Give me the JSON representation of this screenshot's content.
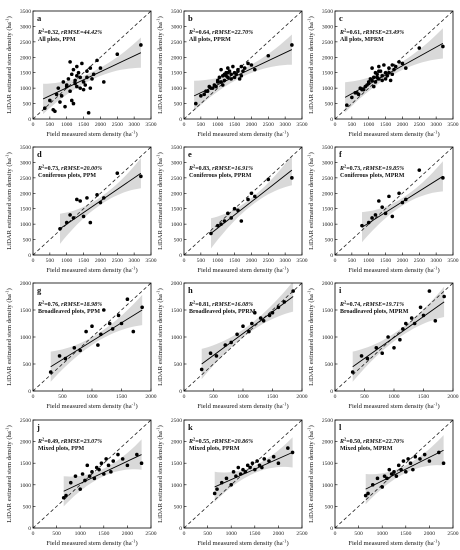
{
  "figure": {
    "xlabel_main": "Field measured stem density",
    "ylabel_main": "LiDAR estimated stem density",
    "unit": "(ha",
    "unit_sup": "-1",
    "unit_close": ")"
  },
  "chart_data": [
    {
      "type": "scatter",
      "label": "a",
      "stat_r2": "=0.32, ",
      "stat_rmse": "rRMSE=44.42%",
      "stat_line2": "All plots, PPM",
      "xlim": [
        0,
        3500
      ],
      "ylim": [
        0,
        3500
      ],
      "xticks": [
        0,
        500,
        1000,
        1500,
        2000,
        2500,
        3000,
        3500
      ],
      "yticks": [
        0,
        500,
        1000,
        1500,
        2000,
        2500,
        3000,
        3500
      ],
      "fit": {
        "x": [
          300,
          3200
        ],
        "y": [
          650,
          2150
        ]
      },
      "x": [
        350,
        500,
        650,
        700,
        800,
        900,
        950,
        1000,
        1050,
        1100,
        1150,
        1200,
        1200,
        1250,
        1300,
        1300,
        1350,
        1400,
        1450,
        1500,
        1550,
        1600,
        1650,
        1700,
        1750,
        1800,
        1900,
        2000,
        2100,
        2500,
        3200,
        600,
        750,
        850,
        1100,
        1300,
        1500,
        1700,
        1250,
        1400,
        1000,
        1150,
        1600
      ],
      "y": [
        350,
        600,
        250,
        800,
        550,
        1200,
        400,
        1100,
        1300,
        900,
        1450,
        1600,
        500,
        1250,
        1050,
        1700,
        1500,
        1350,
        1800,
        1200,
        1100,
        1550,
        200,
        1000,
        1300,
        1450,
        1900,
        1650,
        1200,
        2100,
        2400,
        300,
        1000,
        750,
        1850,
        1400,
        950,
        1650,
        1150,
        1000,
        1050,
        600,
        1350
      ]
    },
    {
      "type": "scatter",
      "label": "b",
      "stat_r2": "=0.64, ",
      "stat_rmse": "rRMSE=22.70%",
      "stat_line2": "All plots, PPRM",
      "xlim": [
        0,
        3500
      ],
      "ylim": [
        0,
        3500
      ],
      "xticks": [
        0,
        500,
        1000,
        1500,
        2000,
        2500,
        3000,
        3500
      ],
      "yticks": [
        0,
        500,
        1000,
        1500,
        2000,
        2500,
        3000,
        3500
      ],
      "fit": {
        "x": [
          300,
          3200
        ],
        "y": [
          750,
          2250
        ]
      },
      "x": [
        350,
        500,
        650,
        700,
        800,
        900,
        950,
        1000,
        1050,
        1100,
        1150,
        1200,
        1200,
        1250,
        1300,
        1300,
        1350,
        1400,
        1450,
        1500,
        1550,
        1600,
        1650,
        1700,
        1750,
        1800,
        1900,
        2000,
        2100,
        2500,
        3200,
        600,
        750,
        850,
        1100,
        1300,
        1500,
        1700,
        1250,
        1400,
        1000,
        1150,
        1600
      ],
      "y": [
        500,
        750,
        900,
        900,
        1000,
        1100,
        1050,
        1250,
        1350,
        1200,
        1400,
        1450,
        1250,
        1500,
        1350,
        1650,
        1550,
        1450,
        1700,
        1500,
        1450,
        1600,
        1300,
        1400,
        1550,
        1650,
        1800,
        1750,
        1600,
        2050,
        2400,
        800,
        1050,
        1000,
        1600,
        1500,
        1350,
        1700,
        1400,
        1300,
        1200,
        1100,
        1550
      ]
    },
    {
      "type": "scatter",
      "label": "c",
      "stat_r2": "=0.61, ",
      "stat_rmse": "rRMSE=23.49%",
      "stat_line2": "All plots, MPRM",
      "xlim": [
        0,
        3500
      ],
      "ylim": [
        0,
        3500
      ],
      "xticks": [
        0,
        500,
        1000,
        1500,
        2000,
        2500,
        3000,
        3500
      ],
      "yticks": [
        0,
        500,
        1000,
        1500,
        2000,
        2500,
        3000,
        3500
      ],
      "fit": {
        "x": [
          300,
          3200
        ],
        "y": [
          700,
          2450
        ]
      },
      "x": [
        350,
        500,
        650,
        700,
        800,
        900,
        950,
        1000,
        1050,
        1100,
        1150,
        1200,
        1200,
        1250,
        1300,
        1300,
        1350,
        1400,
        1450,
        1500,
        1550,
        1600,
        1650,
        1700,
        1750,
        1800,
        1900,
        2000,
        2100,
        2500,
        3200,
        600,
        750,
        850,
        1100,
        1300,
        1500,
        1700,
        1250,
        1400,
        1000,
        1150,
        1600
      ],
      "y": [
        450,
        700,
        850,
        800,
        950,
        1050,
        1100,
        1200,
        1300,
        1250,
        1350,
        1500,
        1200,
        1450,
        1300,
        1700,
        1550,
        1400,
        1750,
        1500,
        1400,
        1650,
        1250,
        1450,
        1600,
        1700,
        1850,
        1800,
        1650,
        2300,
        2350,
        850,
        1000,
        950,
        1650,
        1550,
        1300,
        1750,
        1350,
        1250,
        1150,
        1050,
        1500
      ]
    },
    {
      "type": "scatter",
      "label": "d",
      "stat_r2": "=0.73, ",
      "stat_rmse": "rRMSE=20.00%",
      "stat_line2": "Coniferous plots, PPM",
      "xlim": [
        0,
        3500
      ],
      "ylim": [
        0,
        3500
      ],
      "xticks": [
        0,
        500,
        1000,
        1500,
        2000,
        2500,
        3000,
        3500
      ],
      "yticks": [
        0,
        500,
        1000,
        1500,
        2000,
        2500,
        3000,
        3500
      ],
      "fit": {
        "x": [
          800,
          3200
        ],
        "y": [
          850,
          2650
        ]
      },
      "x": [
        800,
        1000,
        1100,
        1200,
        1300,
        1400,
        1500,
        1600,
        1700,
        1900,
        2000,
        2100,
        2500,
        3200
      ],
      "y": [
        850,
        1050,
        1300,
        1200,
        1800,
        1750,
        1250,
        1850,
        1050,
        1950,
        1700,
        1850,
        2650,
        2550
      ]
    },
    {
      "type": "scatter",
      "label": "e",
      "stat_r2": "=0.83, ",
      "stat_rmse": "rRMSE=16.91%",
      "stat_line2": "Coniferous plots, PPRM",
      "xlim": [
        0,
        3500
      ],
      "ylim": [
        0,
        3500
      ],
      "xticks": [
        0,
        500,
        1000,
        1500,
        2000,
        2500,
        3000,
        3500
      ],
      "yticks": [
        0,
        500,
        1000,
        1500,
        2000,
        2500,
        3000,
        3500
      ],
      "fit": {
        "x": [
          800,
          3200
        ],
        "y": [
          700,
          2750
        ]
      },
      "x": [
        800,
        1000,
        1100,
        1200,
        1300,
        1400,
        1500,
        1600,
        1700,
        1900,
        2000,
        2100,
        2500,
        3200
      ],
      "y": [
        700,
        950,
        1000,
        1100,
        1350,
        1200,
        1500,
        1450,
        1100,
        1800,
        2000,
        1900,
        2450,
        2500
      ]
    },
    {
      "type": "scatter",
      "label": "f",
      "stat_r2": "=0.73, ",
      "stat_rmse": "rRMSE=19.85%",
      "stat_line2": "Coniferous plots, MPRM",
      "xlim": [
        0,
        3500
      ],
      "ylim": [
        0,
        3500
      ],
      "xticks": [
        0,
        500,
        1000,
        1500,
        2000,
        2500,
        3000,
        3500
      ],
      "yticks": [
        0,
        500,
        1000,
        1500,
        2000,
        2500,
        3000,
        3500
      ],
      "fit": {
        "x": [
          800,
          3200
        ],
        "y": [
          900,
          2550
        ]
      },
      "x": [
        800,
        1000,
        1100,
        1200,
        1300,
        1400,
        1500,
        1600,
        1700,
        1900,
        2000,
        2100,
        2500,
        3200
      ],
      "y": [
        950,
        1050,
        1200,
        1300,
        1750,
        1550,
        1350,
        1900,
        1250,
        2000,
        1700,
        1800,
        2750,
        2500
      ]
    },
    {
      "type": "scatter",
      "label": "g",
      "stat_r2": "=0.76, ",
      "stat_rmse": "rRMSE=18.98%",
      "stat_line2": "Broadleaved plots, PPM",
      "xlim": [
        0,
        2000
      ],
      "ylim": [
        0,
        2000
      ],
      "xticks": [
        0,
        500,
        1000,
        1500,
        2000
      ],
      "yticks": [
        0,
        500,
        1000,
        1500,
        2000
      ],
      "fit": {
        "x": [
          300,
          1850
        ],
        "y": [
          450,
          1500
        ]
      },
      "x": [
        300,
        450,
        550,
        700,
        800,
        900,
        1000,
        1100,
        1150,
        1200,
        1300,
        1350,
        1450,
        1500,
        1600,
        1700,
        1850
      ],
      "y": [
        350,
        650,
        600,
        800,
        750,
        1100,
        1200,
        850,
        1050,
        1500,
        1250,
        1150,
        1400,
        1250,
        1700,
        1100,
        1550
      ]
    },
    {
      "type": "scatter",
      "label": "h",
      "stat_r2": "=0.81, ",
      "stat_rmse": "rRMSE=16.08%",
      "stat_line2": "Broadleaved plots, PPRM",
      "xlim": [
        0,
        2000
      ],
      "ylim": [
        0,
        2000
      ],
      "xticks": [
        0,
        500,
        1000,
        1500,
        2000
      ],
      "yticks": [
        0,
        500,
        1000,
        1500,
        2000
      ],
      "fit": {
        "x": [
          300,
          1850
        ],
        "y": [
          500,
          1750
        ]
      },
      "x": [
        300,
        450,
        550,
        700,
        800,
        900,
        1000,
        1100,
        1150,
        1200,
        1300,
        1350,
        1450,
        1500,
        1600,
        1700,
        1850
      ],
      "y": [
        400,
        700,
        650,
        850,
        900,
        1050,
        1200,
        1100,
        1250,
        1450,
        1350,
        1300,
        1400,
        1450,
        1550,
        1650,
        1850
      ]
    },
    {
      "type": "scatter",
      "label": "i",
      "stat_r2": "=0.74, ",
      "stat_rmse": "rRMSE=19.71%",
      "stat_line2": "Broadleaved plots, MPRM",
      "xlim": [
        0,
        2000
      ],
      "ylim": [
        0,
        2000
      ],
      "xticks": [
        0,
        500,
        1000,
        1500,
        2000
      ],
      "yticks": [
        0,
        500,
        1000,
        1500,
        2000
      ],
      "fit": {
        "x": [
          300,
          1850
        ],
        "y": [
          450,
          1650
        ]
      },
      "x": [
        300,
        450,
        550,
        700,
        800,
        900,
        1000,
        1100,
        1150,
        1200,
        1300,
        1350,
        1450,
        1500,
        1600,
        1700,
        1850
      ],
      "y": [
        350,
        650,
        600,
        800,
        700,
        1000,
        800,
        950,
        1150,
        1250,
        1350,
        1250,
        1550,
        1400,
        1850,
        1300,
        1750
      ]
    },
    {
      "type": "scatter",
      "label": "j",
      "stat_r2": "=0.49, ",
      "stat_rmse": "rRMSE=23.07%",
      "stat_line2": "Mixed plots, PPM",
      "xlim": [
        0,
        2500
      ],
      "ylim": [
        0,
        2500
      ],
      "xticks": [
        0,
        500,
        1000,
        1500,
        2000,
        2500
      ],
      "yticks": [
        0,
        500,
        1000,
        1500,
        2000,
        2500
      ],
      "fit": {
        "x": [
          650,
          2300
        ],
        "y": [
          850,
          1700
        ]
      },
      "x": [
        650,
        700,
        800,
        900,
        1000,
        1050,
        1100,
        1150,
        1200,
        1250,
        1300,
        1350,
        1400,
        1450,
        1500,
        1550,
        1600,
        1650,
        1700,
        1800,
        1900,
        2000,
        2200,
        2300
      ],
      "y": [
        700,
        750,
        1050,
        1200,
        900,
        1250,
        1100,
        1450,
        1200,
        1300,
        1150,
        1400,
        1350,
        1500,
        1250,
        1600,
        1450,
        1300,
        1550,
        1700,
        1600,
        1450,
        1700,
        1500
      ]
    },
    {
      "type": "scatter",
      "label": "k",
      "stat_r2": "=0.55, ",
      "stat_rmse": "rRMSE=20.86%",
      "stat_line2": "Mixed plots, PPRM",
      "xlim": [
        0,
        2500
      ],
      "ylim": [
        0,
        2500
      ],
      "xticks": [
        0,
        500,
        1000,
        1500,
        2000,
        2500
      ],
      "yticks": [
        0,
        500,
        1000,
        1500,
        2000,
        2500
      ],
      "fit": {
        "x": [
          650,
          2300
        ],
        "y": [
          950,
          1750
        ]
      },
      "x": [
        650,
        700,
        800,
        900,
        1000,
        1050,
        1100,
        1150,
        1200,
        1250,
        1300,
        1350,
        1400,
        1450,
        1500,
        1550,
        1600,
        1650,
        1700,
        1800,
        1900,
        2000,
        2200,
        2300
      ],
      "y": [
        800,
        900,
        1050,
        1150,
        1000,
        1300,
        1200,
        1400,
        1250,
        1350,
        1300,
        1450,
        1400,
        1500,
        1350,
        1550,
        1450,
        1400,
        1600,
        1550,
        1650,
        1500,
        1850,
        1750
      ]
    },
    {
      "type": "scatter",
      "label": "l",
      "stat_r2": "=0.50, ",
      "stat_rmse": "rRMSE=22.70%",
      "stat_line2": "Mixed plots, MPRM",
      "xlim": [
        0,
        2500
      ],
      "ylim": [
        0,
        2500
      ],
      "xticks": [
        0,
        500,
        1000,
        1500,
        2000,
        2500
      ],
      "yticks": [
        0,
        500,
        1000,
        1500,
        2000,
        2500
      ],
      "fit": {
        "x": [
          650,
          2300
        ],
        "y": [
          900,
          1800
        ]
      },
      "x": [
        650,
        700,
        800,
        900,
        1000,
        1050,
        1100,
        1150,
        1200,
        1250,
        1300,
        1350,
        1400,
        1450,
        1500,
        1550,
        1600,
        1650,
        1700,
        1800,
        1900,
        2000,
        2200,
        2300
      ],
      "y": [
        750,
        800,
        1000,
        1150,
        950,
        1200,
        1150,
        1350,
        1250,
        1300,
        1200,
        1450,
        1350,
        1550,
        1300,
        1600,
        1500,
        1350,
        1650,
        1600,
        1700,
        1550,
        1750,
        1500
      ]
    }
  ]
}
